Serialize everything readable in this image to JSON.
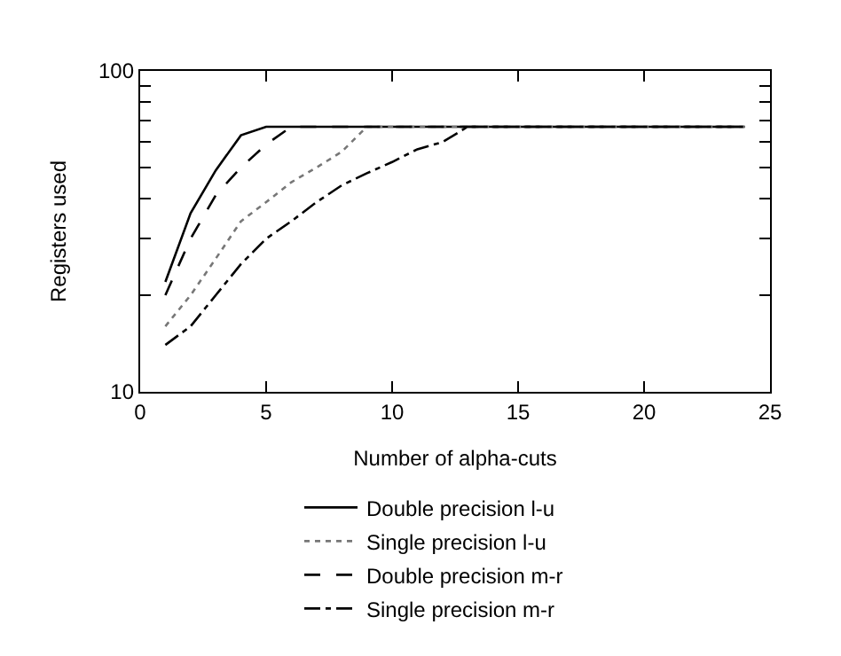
{
  "chart_data": {
    "type": "line",
    "xlabel": "Number of alpha-cuts",
    "ylabel": "Registers used",
    "xlim": [
      0,
      25
    ],
    "xticks": [
      0,
      5,
      10,
      15,
      20,
      25
    ],
    "ylim": [
      10,
      100
    ],
    "yticks": [
      10,
      {
        "value": 20,
        "label": null
      },
      {
        "value": 30,
        "label": null
      },
      {
        "value": 40,
        "label": null
      },
      {
        "value": 50,
        "label": null
      },
      {
        "value": 60,
        "label": null
      },
      {
        "value": 70,
        "label": null
      },
      {
        "value": 80,
        "label": null
      },
      {
        "value": 90,
        "label": null
      },
      100
    ],
    "log": "y",
    "legend": "bottom",
    "marker": "none",
    "series": [
      {
        "name": "Double precision l-u",
        "color": "#000000",
        "line_style": "solid",
        "x": [
          1,
          2,
          3,
          4,
          5,
          24
        ],
        "values": [
          22,
          36,
          49,
          63,
          67,
          67
        ]
      },
      {
        "name": "Single precision l-u",
        "color": "#777777",
        "line_style": "dotted",
        "x": [
          1,
          2,
          3,
          4,
          5,
          6,
          7,
          8,
          9,
          24
        ],
        "values": [
          16,
          20,
          26,
          34,
          39,
          45,
          50,
          56,
          67,
          67
        ]
      },
      {
        "name": "Double precision m-r",
        "color": "#000000",
        "line_style": "dashed",
        "x": [
          1,
          2,
          3,
          4,
          5,
          6,
          24
        ],
        "values": [
          20,
          30,
          41,
          50,
          59,
          67,
          67
        ]
      },
      {
        "name": "Single precision m-r",
        "color": "#000000",
        "line_style": "dashdot",
        "x": [
          1,
          2,
          3,
          4,
          5,
          6,
          7,
          8,
          9,
          10,
          11,
          12,
          13,
          24
        ],
        "values": [
          14,
          16,
          20,
          25,
          30,
          34,
          39,
          44,
          48,
          52,
          57,
          60,
          67,
          67
        ]
      }
    ]
  }
}
